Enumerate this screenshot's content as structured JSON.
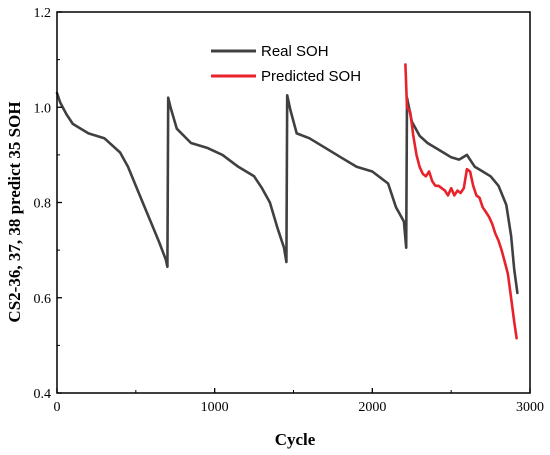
{
  "chart_data": {
    "type": "line",
    "xlabel": "Cycle",
    "ylabel": "CS2-36, 37, 38 predict 35 SOH",
    "xlim": [
      0,
      3000
    ],
    "ylim": [
      0.4,
      1.2
    ],
    "xticks": [
      0,
      1000,
      2000,
      3000
    ],
    "xtick_labels": [
      "0",
      "1000",
      "2000",
      "3000"
    ],
    "yticks": [
      0.4,
      0.6,
      0.8,
      1.0,
      1.2
    ],
    "ytick_labels": [
      "0.4",
      "0.6",
      "0.8",
      "1.0",
      "1.2"
    ],
    "legend_position": "top-center",
    "grid": false,
    "series": [
      {
        "name": "Real SOH",
        "color": "#404040",
        "points": [
          [
            0,
            1.03
          ],
          [
            20,
            1.01
          ],
          [
            60,
            0.985
          ],
          [
            100,
            0.965
          ],
          [
            200,
            0.945
          ],
          [
            300,
            0.935
          ],
          [
            400,
            0.905
          ],
          [
            450,
            0.875
          ],
          [
            500,
            0.835
          ],
          [
            550,
            0.795
          ],
          [
            600,
            0.755
          ],
          [
            650,
            0.715
          ],
          [
            690,
            0.68
          ],
          [
            700,
            0.665
          ],
          [
            705,
            1.02
          ],
          [
            720,
            1.0
          ],
          [
            760,
            0.955
          ],
          [
            850,
            0.925
          ],
          [
            950,
            0.915
          ],
          [
            1050,
            0.9
          ],
          [
            1150,
            0.875
          ],
          [
            1250,
            0.855
          ],
          [
            1300,
            0.83
          ],
          [
            1350,
            0.8
          ],
          [
            1400,
            0.745
          ],
          [
            1440,
            0.705
          ],
          [
            1455,
            0.675
          ],
          [
            1460,
            1.025
          ],
          [
            1480,
            0.995
          ],
          [
            1520,
            0.945
          ],
          [
            1600,
            0.935
          ],
          [
            1700,
            0.915
          ],
          [
            1800,
            0.895
          ],
          [
            1900,
            0.875
          ],
          [
            2000,
            0.865
          ],
          [
            2100,
            0.84
          ],
          [
            2150,
            0.79
          ],
          [
            2200,
            0.76
          ],
          [
            2215,
            0.705
          ],
          [
            2220,
            1.02
          ],
          [
            2250,
            0.97
          ],
          [
            2300,
            0.94
          ],
          [
            2350,
            0.925
          ],
          [
            2400,
            0.915
          ],
          [
            2450,
            0.905
          ],
          [
            2500,
            0.895
          ],
          [
            2550,
            0.89
          ],
          [
            2600,
            0.9
          ],
          [
            2650,
            0.875
          ],
          [
            2700,
            0.865
          ],
          [
            2750,
            0.855
          ],
          [
            2800,
            0.835
          ],
          [
            2850,
            0.795
          ],
          [
            2880,
            0.73
          ],
          [
            2900,
            0.66
          ],
          [
            2920,
            0.61
          ]
        ]
      },
      {
        "name": "Predicted SOH",
        "color": "#e8222b",
        "points": [
          [
            2210,
            1.09
          ],
          [
            2220,
            1.0
          ],
          [
            2240,
            0.99
          ],
          [
            2260,
            0.94
          ],
          [
            2280,
            0.9
          ],
          [
            2300,
            0.875
          ],
          [
            2320,
            0.86
          ],
          [
            2340,
            0.855
          ],
          [
            2360,
            0.865
          ],
          [
            2380,
            0.845
          ],
          [
            2400,
            0.835
          ],
          [
            2420,
            0.835
          ],
          [
            2440,
            0.83
          ],
          [
            2460,
            0.825
          ],
          [
            2480,
            0.815
          ],
          [
            2500,
            0.83
          ],
          [
            2520,
            0.815
          ],
          [
            2540,
            0.825
          ],
          [
            2560,
            0.82
          ],
          [
            2580,
            0.83
          ],
          [
            2600,
            0.87
          ],
          [
            2620,
            0.865
          ],
          [
            2640,
            0.835
          ],
          [
            2660,
            0.815
          ],
          [
            2680,
            0.81
          ],
          [
            2700,
            0.79
          ],
          [
            2720,
            0.78
          ],
          [
            2740,
            0.77
          ],
          [
            2760,
            0.755
          ],
          [
            2780,
            0.735
          ],
          [
            2800,
            0.72
          ],
          [
            2820,
            0.7
          ],
          [
            2840,
            0.675
          ],
          [
            2860,
            0.65
          ],
          [
            2880,
            0.6
          ],
          [
            2900,
            0.55
          ],
          [
            2915,
            0.515
          ]
        ]
      }
    ]
  }
}
